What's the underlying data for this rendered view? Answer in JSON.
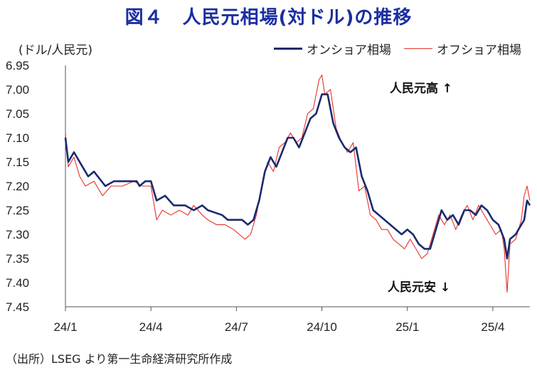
{
  "chart_data": {
    "type": "line",
    "title": "図４　人民元相場(対ドル)の推移",
    "ylabel": "(ドル/人民元)",
    "source": "（出所）LSEG より第一生命経済研究所作成",
    "y_inverted": true,
    "ylim": [
      6.95,
      7.45
    ],
    "y_ticks": [
      "6.95",
      "7.00",
      "7.05",
      "7.10",
      "7.15",
      "7.20",
      "7.25",
      "7.30",
      "7.35",
      "7.40",
      "7.45"
    ],
    "x_ticks": [
      "24/1",
      "24/4",
      "24/7",
      "24/10",
      "25/1",
      "25/4"
    ],
    "x_tick_months": [
      0,
      3,
      6,
      9,
      12,
      15
    ],
    "xlim_months": [
      0,
      16.3
    ],
    "grid": false,
    "legend_position": "top-right",
    "annotations": {
      "up": "人民元高",
      "down": "人民元安"
    },
    "series": [
      {
        "name": "オンショア相場",
        "color": "#1a2a6e",
        "points": [
          [
            0.0,
            7.1
          ],
          [
            0.1,
            7.15
          ],
          [
            0.3,
            7.13
          ],
          [
            0.6,
            7.16
          ],
          [
            0.8,
            7.18
          ],
          [
            1.0,
            7.17
          ],
          [
            1.4,
            7.2
          ],
          [
            1.7,
            7.19
          ],
          [
            2.0,
            7.19
          ],
          [
            2.5,
            7.19
          ],
          [
            2.6,
            7.2
          ],
          [
            2.8,
            7.19
          ],
          [
            3.0,
            7.19
          ],
          [
            3.2,
            7.23
          ],
          [
            3.5,
            7.22
          ],
          [
            3.8,
            7.24
          ],
          [
            4.2,
            7.24
          ],
          [
            4.5,
            7.25
          ],
          [
            4.8,
            7.24
          ],
          [
            5.0,
            7.25
          ],
          [
            5.5,
            7.26
          ],
          [
            5.7,
            7.27
          ],
          [
            6.0,
            7.27
          ],
          [
            6.2,
            7.27
          ],
          [
            6.4,
            7.28
          ],
          [
            6.6,
            7.27
          ],
          [
            6.8,
            7.23
          ],
          [
            7.0,
            7.17
          ],
          [
            7.2,
            7.14
          ],
          [
            7.4,
            7.16
          ],
          [
            7.6,
            7.13
          ],
          [
            7.8,
            7.1
          ],
          [
            8.0,
            7.1
          ],
          [
            8.2,
            7.12
          ],
          [
            8.4,
            7.09
          ],
          [
            8.6,
            7.06
          ],
          [
            8.8,
            7.05
          ],
          [
            9.0,
            7.01
          ],
          [
            9.2,
            7.01
          ],
          [
            9.4,
            7.07
          ],
          [
            9.6,
            7.1
          ],
          [
            9.8,
            7.12
          ],
          [
            10.0,
            7.13
          ],
          [
            10.2,
            7.12
          ],
          [
            10.4,
            7.18
          ],
          [
            10.6,
            7.21
          ],
          [
            10.8,
            7.25
          ],
          [
            11.0,
            7.26
          ],
          [
            11.2,
            7.27
          ],
          [
            11.4,
            7.28
          ],
          [
            11.6,
            7.29
          ],
          [
            11.8,
            7.3
          ],
          [
            12.0,
            7.29
          ],
          [
            12.2,
            7.3
          ],
          [
            12.4,
            7.32
          ],
          [
            12.6,
            7.33
          ],
          [
            12.8,
            7.33
          ],
          [
            13.0,
            7.29
          ],
          [
            13.2,
            7.25
          ],
          [
            13.4,
            7.27
          ],
          [
            13.6,
            7.26
          ],
          [
            13.8,
            7.28
          ],
          [
            14.0,
            7.25
          ],
          [
            14.2,
            7.25
          ],
          [
            14.4,
            7.26
          ],
          [
            14.6,
            7.24
          ],
          [
            14.8,
            7.25
          ],
          [
            15.0,
            7.27
          ],
          [
            15.2,
            7.28
          ],
          [
            15.4,
            7.31
          ],
          [
            15.5,
            7.35
          ],
          [
            15.6,
            7.31
          ],
          [
            15.8,
            7.3
          ],
          [
            16.0,
            7.28
          ],
          [
            16.1,
            7.27
          ],
          [
            16.2,
            7.23
          ],
          [
            16.3,
            7.24
          ]
        ]
      },
      {
        "name": "オフショア相場",
        "color": "#e8302a",
        "points": [
          [
            0.0,
            7.09
          ],
          [
            0.1,
            7.16
          ],
          [
            0.3,
            7.14
          ],
          [
            0.5,
            7.18
          ],
          [
            0.7,
            7.2
          ],
          [
            1.0,
            7.19
          ],
          [
            1.3,
            7.22
          ],
          [
            1.6,
            7.2
          ],
          [
            2.0,
            7.2
          ],
          [
            2.4,
            7.19
          ],
          [
            2.7,
            7.2
          ],
          [
            3.0,
            7.2
          ],
          [
            3.2,
            7.27
          ],
          [
            3.4,
            7.25
          ],
          [
            3.7,
            7.26
          ],
          [
            4.0,
            7.25
          ],
          [
            4.3,
            7.26
          ],
          [
            4.5,
            7.24
          ],
          [
            4.8,
            7.26
          ],
          [
            5.0,
            7.27
          ],
          [
            5.3,
            7.28
          ],
          [
            5.6,
            7.28
          ],
          [
            5.9,
            7.29
          ],
          [
            6.1,
            7.3
          ],
          [
            6.3,
            7.31
          ],
          [
            6.5,
            7.3
          ],
          [
            6.7,
            7.26
          ],
          [
            6.9,
            7.2
          ],
          [
            7.1,
            7.15
          ],
          [
            7.3,
            7.17
          ],
          [
            7.5,
            7.12
          ],
          [
            7.7,
            7.11
          ],
          [
            7.9,
            7.09
          ],
          [
            8.1,
            7.11
          ],
          [
            8.3,
            7.1
          ],
          [
            8.5,
            7.05
          ],
          [
            8.7,
            7.04
          ],
          [
            8.9,
            6.98
          ],
          [
            9.0,
            6.97
          ],
          [
            9.1,
            7.01
          ],
          [
            9.3,
            7.0
          ],
          [
            9.5,
            7.08
          ],
          [
            9.7,
            7.11
          ],
          [
            9.9,
            7.13
          ],
          [
            10.1,
            7.11
          ],
          [
            10.3,
            7.21
          ],
          [
            10.5,
            7.2
          ],
          [
            10.7,
            7.26
          ],
          [
            10.9,
            7.27
          ],
          [
            11.1,
            7.29
          ],
          [
            11.3,
            7.29
          ],
          [
            11.5,
            7.31
          ],
          [
            11.7,
            7.32
          ],
          [
            11.9,
            7.33
          ],
          [
            12.1,
            7.31
          ],
          [
            12.3,
            7.33
          ],
          [
            12.5,
            7.35
          ],
          [
            12.7,
            7.34
          ],
          [
            12.9,
            7.3
          ],
          [
            13.1,
            7.26
          ],
          [
            13.3,
            7.28
          ],
          [
            13.5,
            7.26
          ],
          [
            13.7,
            7.29
          ],
          [
            13.9,
            7.26
          ],
          [
            14.1,
            7.24
          ],
          [
            14.3,
            7.27
          ],
          [
            14.5,
            7.24
          ],
          [
            14.7,
            7.26
          ],
          [
            14.9,
            7.28
          ],
          [
            15.1,
            7.3
          ],
          [
            15.3,
            7.29
          ],
          [
            15.4,
            7.33
          ],
          [
            15.5,
            7.42
          ],
          [
            15.6,
            7.32
          ],
          [
            15.8,
            7.31
          ],
          [
            16.0,
            7.27
          ],
          [
            16.1,
            7.22
          ],
          [
            16.2,
            7.2
          ],
          [
            16.3,
            7.23
          ]
        ]
      }
    ]
  }
}
